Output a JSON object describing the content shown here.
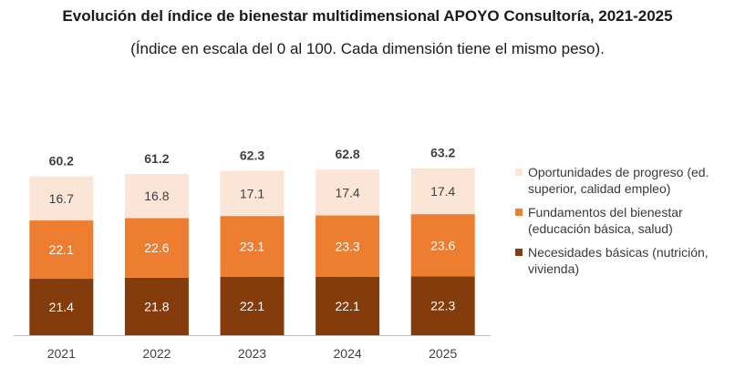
{
  "title": "Evolución del índice de bienestar multidimensional APOYO Consultoría, 2021-2025",
  "subtitle": "(Índice en escala del 0 al 100. Cada dimensión tiene el mismo peso).",
  "chart_data": {
    "type": "bar",
    "stacked": true,
    "categories": [
      "2021",
      "2022",
      "2023",
      "2024",
      "2025"
    ],
    "totals": [
      "60.2",
      "61.2",
      "62.3",
      "62.8",
      "63.2"
    ],
    "series": [
      {
        "name": "Necesidades básicas (nutrición, vivienda)",
        "values": [
          21.4,
          21.8,
          22.1,
          22.1,
          22.3
        ],
        "color": "#843C0C",
        "label_color": "#ffffff"
      },
      {
        "name": "Fundamentos del bienestar (educación básica, salud)",
        "values": [
          22.1,
          22.6,
          23.1,
          23.3,
          23.6
        ],
        "color": "#ED7D31",
        "label_color": "#ffffff"
      },
      {
        "name": "Oportunidades de progreso (ed. superior, calidad empleo)",
        "values": [
          16.7,
          16.8,
          17.1,
          17.4,
          17.4
        ],
        "color": "#FBE5D6",
        "label_color": "#404040"
      }
    ],
    "legend": {
      "position": "right",
      "order": [
        2,
        1,
        0
      ]
    }
  }
}
